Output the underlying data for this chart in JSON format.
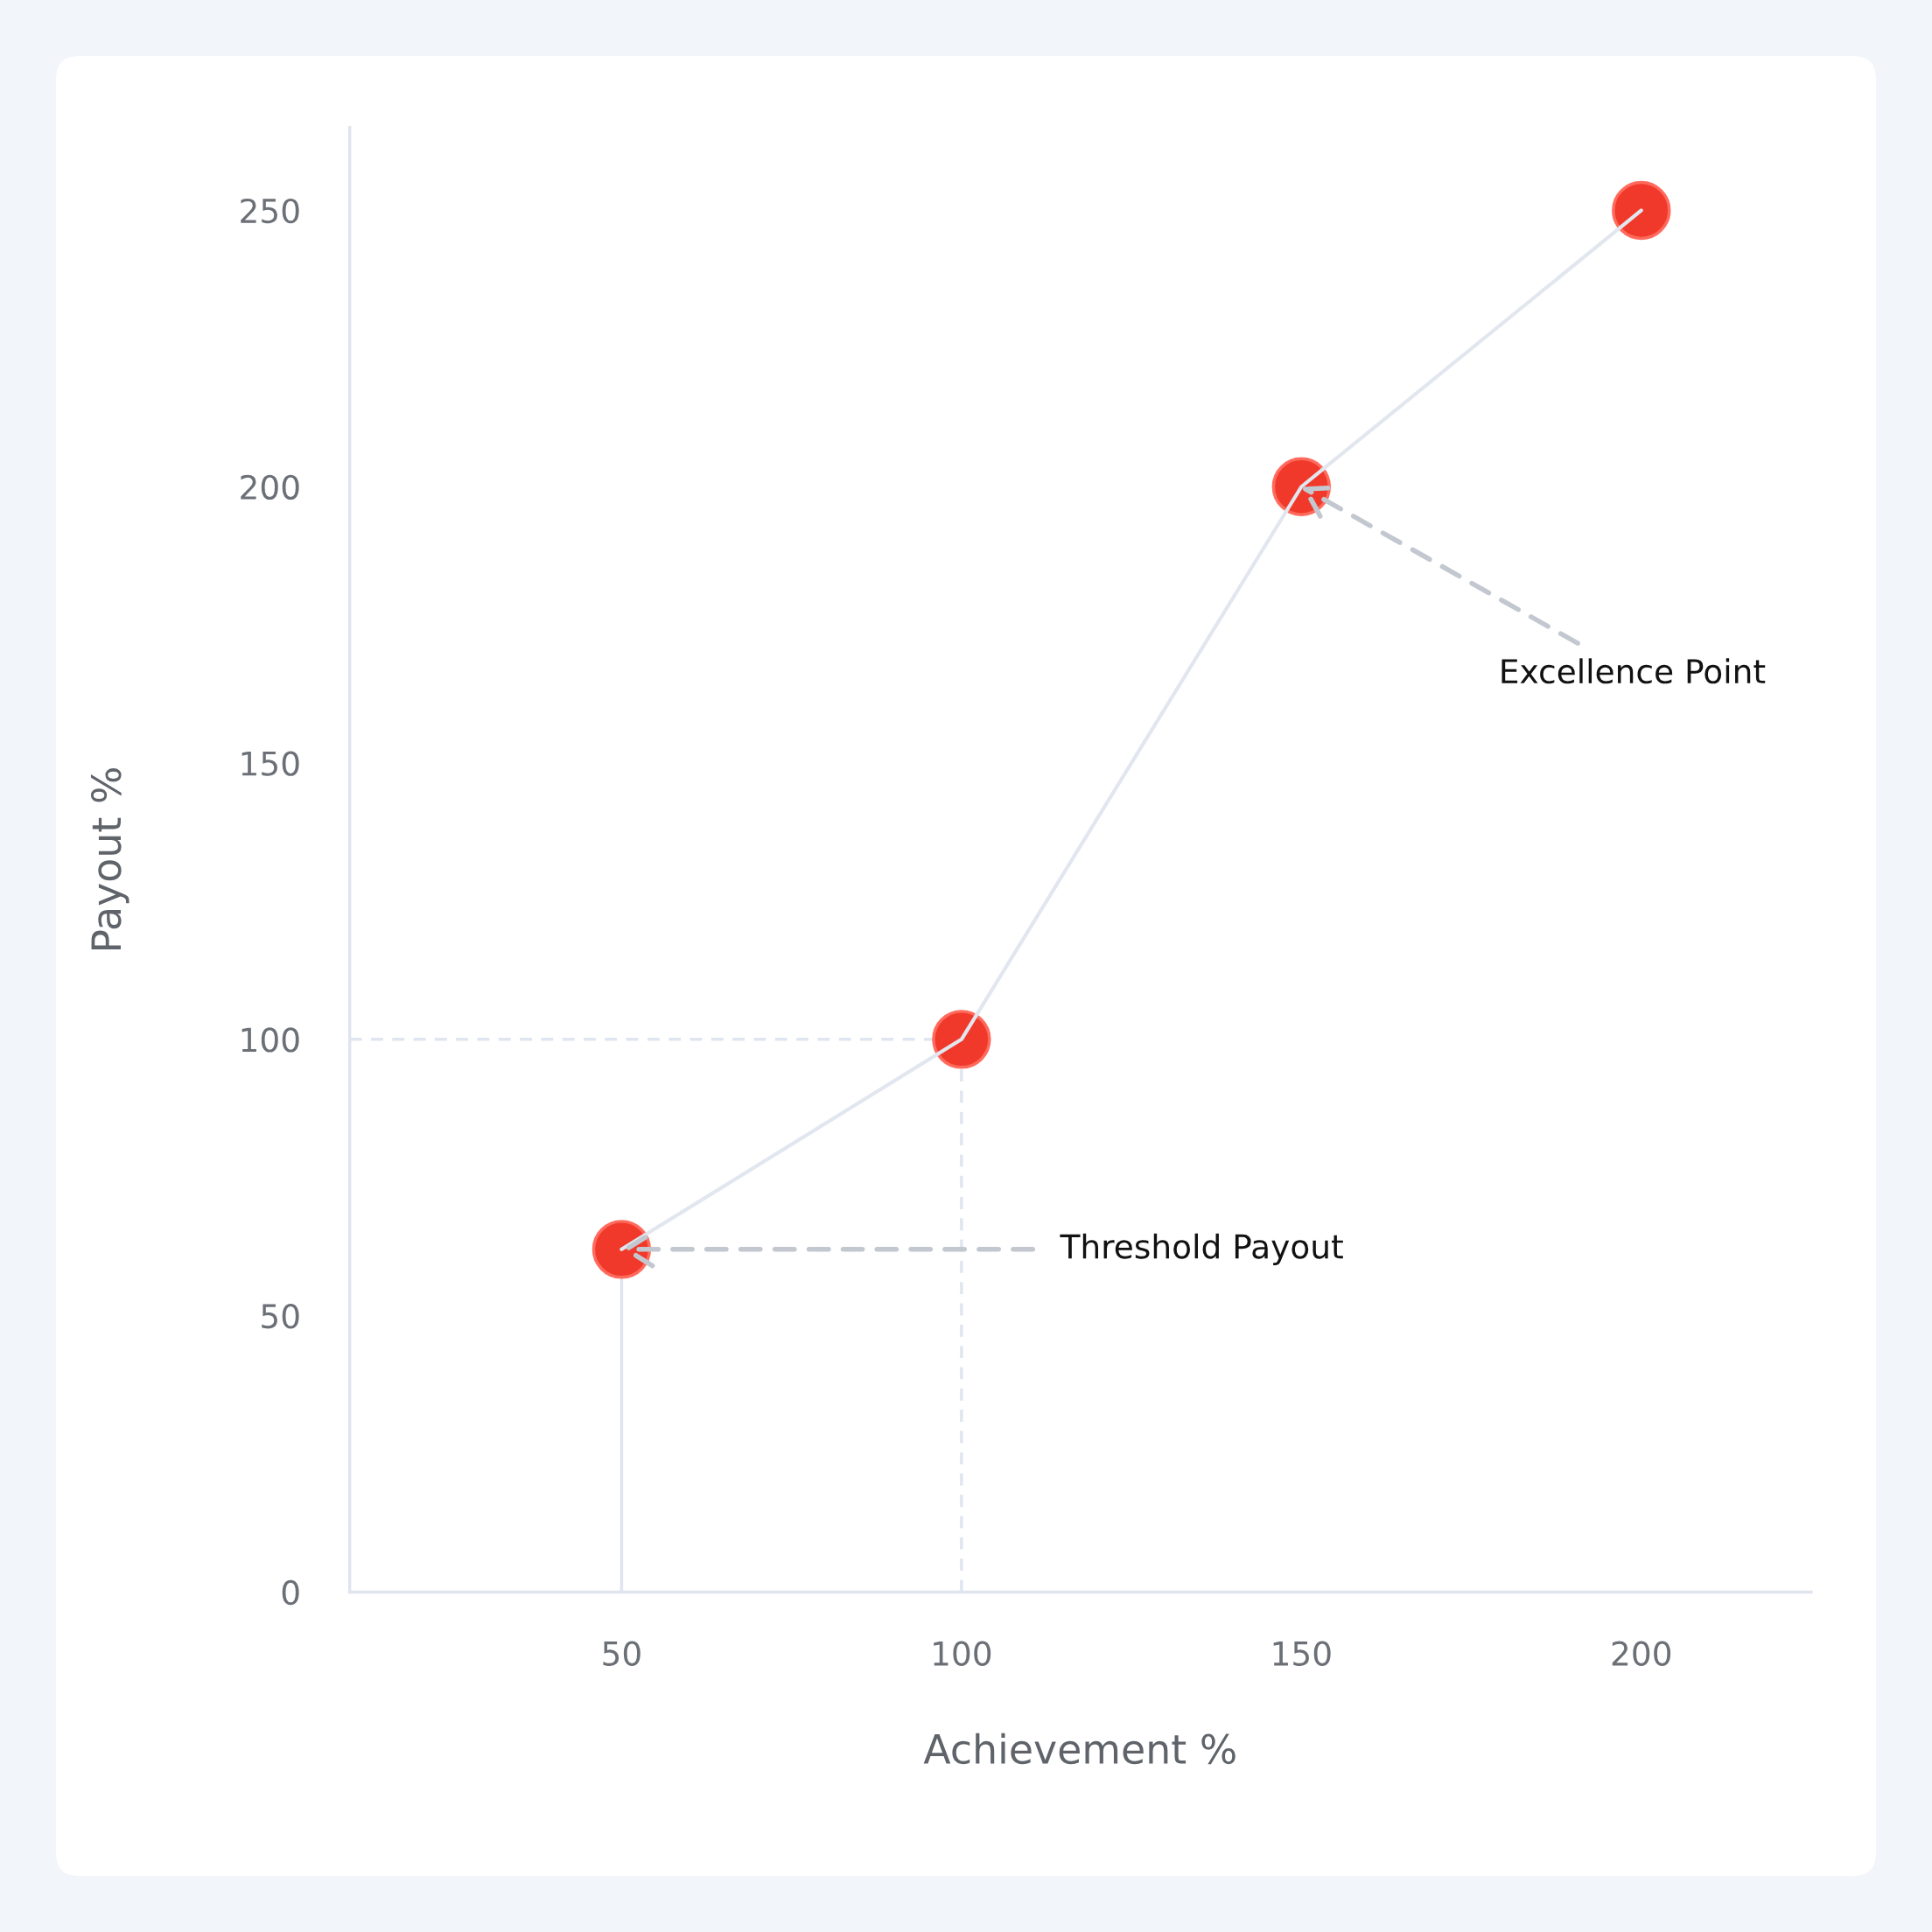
{
  "chart_data": {
    "type": "line",
    "xlabel": "Achievement %",
    "ylabel": "Payout %",
    "x": [
      50,
      100,
      150,
      200
    ],
    "series": [
      {
        "color": "#e1e6ef",
        "marker": "none",
        "values": [
          62,
          100,
          200,
          250
        ]
      },
      {
        "type": "scatter",
        "color": "#f0392b",
        "values": [
          62,
          100,
          200,
          250
        ]
      }
    ],
    "xlim": [
      10,
      225
    ],
    "ylim": [
      0,
      265
    ],
    "xticks": [
      50,
      100,
      150,
      200
    ],
    "yticks": [
      0,
      50,
      100,
      150,
      200,
      250
    ],
    "marker": "circle",
    "line_style": "solid",
    "grid": false,
    "legend": false,
    "ref_lines": [
      {
        "axis": "x",
        "value": 50,
        "color": "#dfe4ee",
        "line_style": "solid"
      },
      {
        "axis": "x",
        "value": 100,
        "color": "#dfe6f0",
        "line_style": "dashed"
      },
      {
        "axis": "y",
        "value": 100,
        "color": "#dfe6f0",
        "line_style": "dashed"
      }
    ],
    "annotations": [
      {
        "text": "Threshold Payout",
        "x": 50,
        "y": 62
      },
      {
        "text": "Excellence Point",
        "x": 150,
        "y": 200
      }
    ]
  }
}
